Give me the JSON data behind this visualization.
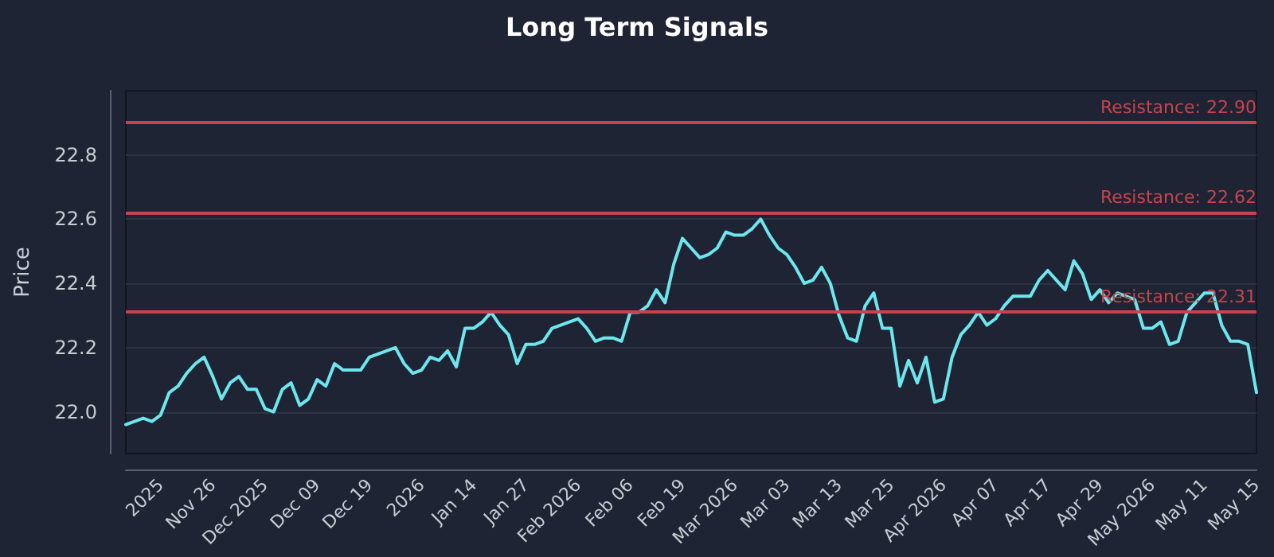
{
  "chart_data": {
    "type": "line",
    "title": "Long Term Signals",
    "ylabel": "Price",
    "categories": [
      null,
      null,
      null,
      null,
      "2025",
      null,
      null,
      null,
      null,
      null,
      "Nov 26",
      null,
      null,
      null,
      null,
      null,
      "Dec 2025",
      null,
      null,
      null,
      null,
      null,
      "Dec 09",
      null,
      null,
      null,
      null,
      null,
      "Dec 19",
      null,
      null,
      null,
      null,
      null,
      "2026",
      null,
      null,
      null,
      null,
      null,
      "Jan 14",
      null,
      null,
      null,
      null,
      null,
      "Jan 27",
      null,
      null,
      null,
      null,
      null,
      "Feb 2026",
      null,
      null,
      null,
      null,
      null,
      "Feb 06",
      null,
      null,
      null,
      null,
      null,
      "Feb 19",
      null,
      null,
      null,
      null,
      null,
      "Mar 2026",
      null,
      null,
      null,
      null,
      null,
      "Mar 03",
      null,
      null,
      null,
      null,
      null,
      "Mar 13",
      null,
      null,
      null,
      null,
      null,
      "Mar 25",
      null,
      null,
      null,
      null,
      null,
      "Apr 2026",
      null,
      null,
      null,
      null,
      null,
      "Apr 07",
      null,
      null,
      null,
      null,
      null,
      "Apr 17",
      null,
      null,
      null,
      null,
      null,
      "Apr 29",
      null,
      null,
      null,
      null,
      null,
      "May 2026",
      null,
      null,
      null,
      null,
      null,
      "May 11",
      null,
      null,
      null,
      null,
      null,
      "May 15"
    ],
    "series": [
      {
        "color": "#6ee6ee",
        "values": [
          21.96,
          21.97,
          21.98,
          21.97,
          21.99,
          22.06,
          22.08,
          22.12,
          22.15,
          22.17,
          22.11,
          22.04,
          22.09,
          22.11,
          22.07,
          22.07,
          22.01,
          22.0,
          22.07,
          22.09,
          22.02,
          22.04,
          22.1,
          22.08,
          22.15,
          22.13,
          22.13,
          22.13,
          22.17,
          22.18,
          22.19,
          22.2,
          22.15,
          22.12,
          22.13,
          22.17,
          22.16,
          22.19,
          22.14,
          22.26,
          22.26,
          22.28,
          22.31,
          22.27,
          22.24,
          22.15,
          22.21,
          22.21,
          22.22,
          22.26,
          22.27,
          22.28,
          22.29,
          22.26,
          22.22,
          22.23,
          22.23,
          22.22,
          22.31,
          22.31,
          22.33,
          22.38,
          22.34,
          22.46,
          22.54,
          22.51,
          22.48,
          22.49,
          22.51,
          22.56,
          22.55,
          22.55,
          22.57,
          22.6,
          22.55,
          22.51,
          22.49,
          22.45,
          22.4,
          22.41,
          22.45,
          22.4,
          22.3,
          22.23,
          22.22,
          22.33,
          22.37,
          22.26,
          22.26,
          22.08,
          22.16,
          22.09,
          22.17,
          22.03,
          22.04,
          22.17,
          22.24,
          22.27,
          22.31,
          22.27,
          22.29,
          22.33,
          22.36,
          22.36,
          22.36,
          22.41,
          22.44,
          22.41,
          22.38,
          22.47,
          22.43,
          22.35,
          22.38,
          22.34,
          22.37,
          22.36,
          22.35,
          22.26,
          22.26,
          22.28,
          22.21,
          22.22,
          22.31,
          22.34,
          22.37,
          22.37,
          22.27,
          22.22,
          22.22,
          22.21,
          22.06
        ]
      }
    ],
    "ylim": [
      21.87,
      23.0
    ],
    "yticks": [
      {
        "value": 22,
        "label": "22.0"
      },
      22.2,
      22.4,
      22.6,
      22.8
    ],
    "grid": "y",
    "marker": "none",
    "line_style": "solid",
    "ref_lines": [
      {
        "axis": "y",
        "value": 22.9,
        "label": "Resistance: 22.90",
        "color": "#c8434d"
      },
      {
        "axis": "y",
        "value": 22.62,
        "label": "Resistance: 22.62",
        "color": "#c8434d"
      },
      {
        "axis": "y",
        "value": 22.31,
        "label": "Resistance: 22.31",
        "color": "#c8434d"
      }
    ]
  }
}
